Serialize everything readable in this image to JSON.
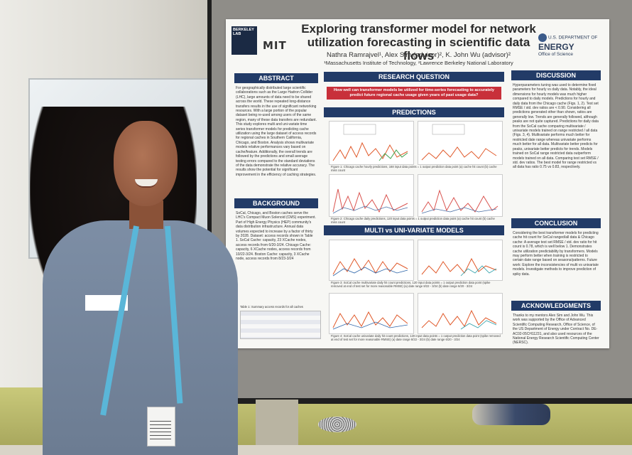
{
  "poster": {
    "title": "Exploring transformer model for network utilization forecasting in scientific data flows",
    "authors": "Nathra Ramrajvel¹, Alex Sim (advisor)², K. John Wu (advisor)²",
    "affiliations": "¹Massachusetts Institute of Technology, ²Lawrence Berkeley National Laboratory",
    "logos": {
      "berkeley": "BERKELEY LAB",
      "mit": "MIT",
      "doe_line1": "U.S. DEPARTMENT OF",
      "doe_line2": "ENERGY",
      "doe_line3": "Office of Science"
    },
    "sections": {
      "abstract": {
        "heading": "ABSTRACT",
        "text": "For geographically distributed large scientific collaborations such as the Large Hadron Collider (LHC), large amounts of data need to be shared across the world. These repeated long-distance transfers results in the use of significant networking resources. With a large portion of the popular dataset being re-used among users of the same region, many of these data transfers are redundant. This study explores multi and uni-variate time series transformer models for predicting cache utilization using the large dataset of access records for regional caches in Southern California, Chicago, and Boston. Analysis shows multivariate models relative performances vary based on cache/feature. Additionally, the overall trends are followed by the predictions and small average testing errors compared to the standard deviations of the data demonstrate the relative accuracy. The results show the potential for significant improvement in the efficiency of caching strategies."
      },
      "background": {
        "heading": "BACKGROUND",
        "text": "SoCal, Chicago, and Boston caches serve the LHC's Compact Muon Solenoid (CMS) experiment. Part of High Energy Physics (HEP) community's data distribution infrastructure. Annual data volumes expected to increase by a factor of thirty by 2028. Dataset: access records shown in Table 1. SoCal Cache: capacity, 23 XCache nodes, access records from 6/20-3/24. Chicago Cache: capacity, 6 XCache nodes, access records from 10/22-3/24. Boston Cache: capacity, 3 XCache node, access records from 8/23-3/24",
        "table_caption": "Table 1: Summary access records for all caches"
      },
      "research_question": {
        "heading": "RESEARCH QUESTION",
        "text": "How well can transformer models be utilized for time-series forecasting to accurately predict future regional cache usage given years of past usage data?"
      },
      "predictions": {
        "heading": "PREDICTIONS",
        "fig1_caption": "Figure 1: Chicago cache hourly predictions, 168 input data points = 1 output prediction data point (a) cache hit count (b) cache miss count",
        "fig2_caption": "Figure 2: Chicago cache daily predictions, 120 input data points = 1 output prediction data point (a) cache hit count (b) cache miss count"
      },
      "multi_uni": {
        "heading": "MULTI vs UNI-VARIATE MODELS",
        "fig3_caption": "Figure 3: SoCal cache multivariate daily hit count predictions, 120 input data points = 1 output prediction data point (spike removed at end of test set for more reasonable RMSE) (a) date range 8/22 - 3/24 (b) date range 6/20 - 3/24",
        "fig4_caption": "Figure 4: SoCal cache univariate daily hit count predictions, 120 input data points = 1 output prediction data point (spike removed at end of test set for more reasonable RMSE) (a) date range 8/22 - 3/24 (b) date range 6/20 - 3/24"
      },
      "discussion": {
        "heading": "DISCUSSION",
        "text": "Hyperparameters tuning was used to determine fixed parameters for hourly vs daily data. Notably, the ideal dimensions for hourly models was much higher compared to daily models. Predictions for hourly and daily data from the Chicago cache (Figs. 1, 2). Test set RMSE / std. dev ratios are < 0.90. Considering all predictions generated other than shown, ratios are generally low. Trends are generally followed, although peaks are not quite captured. Predictions for daily data from the SoCal cache comparing multivariate / univariate models trained on range restricted / all data (Figs. 3, 4). Multivariate performs much better for restricted date range whereas univariate performs much better for all data. Multivariate better predicts for peaks, univariate better predicts for trends. Models trained on SoCal range restricted data outperform models trained on all data. Comparing test set RMSE / std. dev ratios. The best model for range restricted vs all data has ratio 0.75 vs 0.83, respectively."
      },
      "conclusion": {
        "heading": "CONCLUSION",
        "text": "Considering the best transformer models for predicting cache hit count for SoCal ranged/all data & Chicago cache: A average test set RMSE / std. dev ratio for hit count is 0.78, which is well below 1. Demonstrates cache utilization predictability by transformers. Models may perform better when training is restricted to certain date range based on seasons/patterns. Future work: Explore the inconsistencies of multi vs univariate models. Investigate methods to improve prediction of spiky data."
      },
      "acknowledgments": {
        "heading": "ACKNOWLEDGMENTS",
        "text": "Thanks to my mentors Alex Sim and John Wu. This work was supported by the Office of Advanced Scientific Computing Research, Office of Science, of the US Department of Energy under Contract No. DE-AC02-05CH11231, and also used resources of the National Energy Research Scientific Computing Center (NERSC)."
      }
    }
  },
  "colors": {
    "header_navy": "#223b67",
    "question_red": "#c8303a",
    "lanyard_blue": "#5ab6d8"
  }
}
